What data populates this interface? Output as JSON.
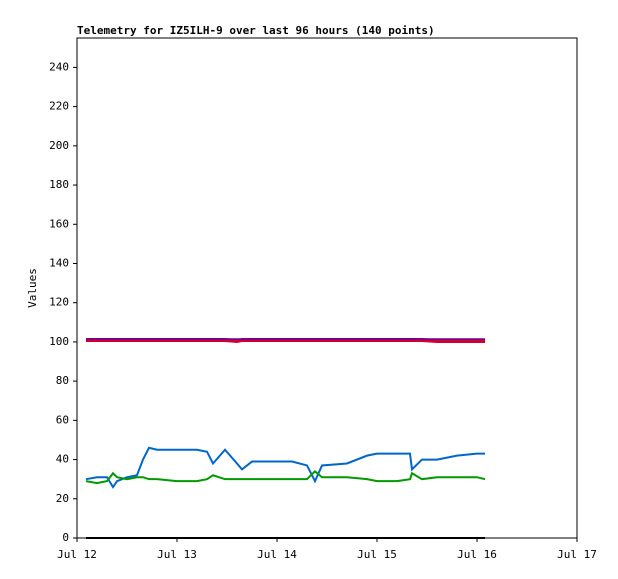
{
  "chart_data": {
    "type": "line",
    "title": "Telemetry for IZ5ILH-9 over last 96 hours (140 points)",
    "y_label": "Values",
    "x": [
      0.09,
      0.2,
      0.3,
      0.36,
      0.4,
      0.5,
      0.6,
      0.66,
      0.72,
      0.8,
      1.0,
      1.2,
      1.3,
      1.36,
      1.48,
      1.6,
      1.65,
      1.75,
      2.0,
      2.15,
      2.3,
      2.38,
      2.45,
      2.7,
      2.9,
      3.0,
      3.2,
      3.33,
      3.35,
      3.45,
      3.6,
      3.8,
      4.0,
      4.08
    ],
    "series": [
      {
        "color": "#cc0033",
        "width": 4,
        "values": [
          101,
          101,
          101,
          101,
          101,
          101,
          101,
          101,
          101,
          101,
          101,
          101,
          101,
          101,
          101,
          100.5,
          101,
          101,
          101,
          101,
          101,
          101,
          101,
          101,
          101,
          101,
          101,
          101,
          101,
          101,
          100.5,
          100.5,
          100.5,
          100.5
        ]
      },
      {
        "color": "#660099",
        "width": 1.5,
        "values": [
          101.5,
          101.5,
          101.5,
          101.5,
          101.5,
          101.5,
          101.5,
          101.5,
          101.5,
          101.5,
          101.5,
          101.5,
          101.5,
          101.5,
          101.5,
          101.5,
          101.5,
          101.5,
          101.5,
          101.5,
          101.5,
          101.5,
          101.5,
          101.5,
          101.5,
          101.5,
          101.5,
          101.5,
          101.5,
          101.5,
          101.5,
          101.5,
          101.5,
          101.5
        ]
      },
      {
        "color": "#0066cc",
        "width": 2,
        "values": [
          30,
          31,
          31,
          26,
          29,
          31,
          32,
          40,
          46,
          45,
          45,
          45,
          44,
          38,
          45,
          38,
          35,
          39,
          39,
          39,
          37,
          29,
          37,
          38,
          42,
          43,
          43,
          43,
          35,
          40,
          40,
          42,
          43,
          43
        ]
      },
      {
        "color": "#009900",
        "width": 2,
        "values": [
          29,
          28,
          29,
          33,
          31,
          30,
          31,
          31,
          30,
          30,
          29,
          29,
          30,
          32,
          30,
          30,
          30,
          30,
          30,
          30,
          30,
          34,
          31,
          31,
          30,
          29,
          29,
          30,
          33,
          30,
          31,
          31,
          31,
          30
        ]
      },
      {
        "color": "#000000",
        "width": 2,
        "values": [
          0,
          0,
          0,
          0,
          0,
          0,
          0,
          0,
          0,
          0,
          0,
          0,
          0,
          0,
          0,
          0,
          0,
          0,
          0,
          0,
          0,
          0,
          0,
          0,
          0,
          0,
          0,
          0,
          0,
          0,
          0,
          0,
          0,
          0
        ]
      }
    ],
    "xlim": [
      0,
      5
    ],
    "xticks": [
      {
        "value": 0,
        "label": "Jul 12"
      },
      {
        "value": 1,
        "label": "Jul 13"
      },
      {
        "value": 2,
        "label": "Jul 14"
      },
      {
        "value": 3,
        "label": "Jul 15"
      },
      {
        "value": 4,
        "label": "Jul 16"
      },
      {
        "value": 5,
        "label": "Jul 17"
      }
    ],
    "ylim": [
      0,
      255
    ],
    "yticks": [
      0,
      20,
      40,
      60,
      80,
      100,
      120,
      140,
      160,
      180,
      200,
      220,
      240
    ]
  }
}
